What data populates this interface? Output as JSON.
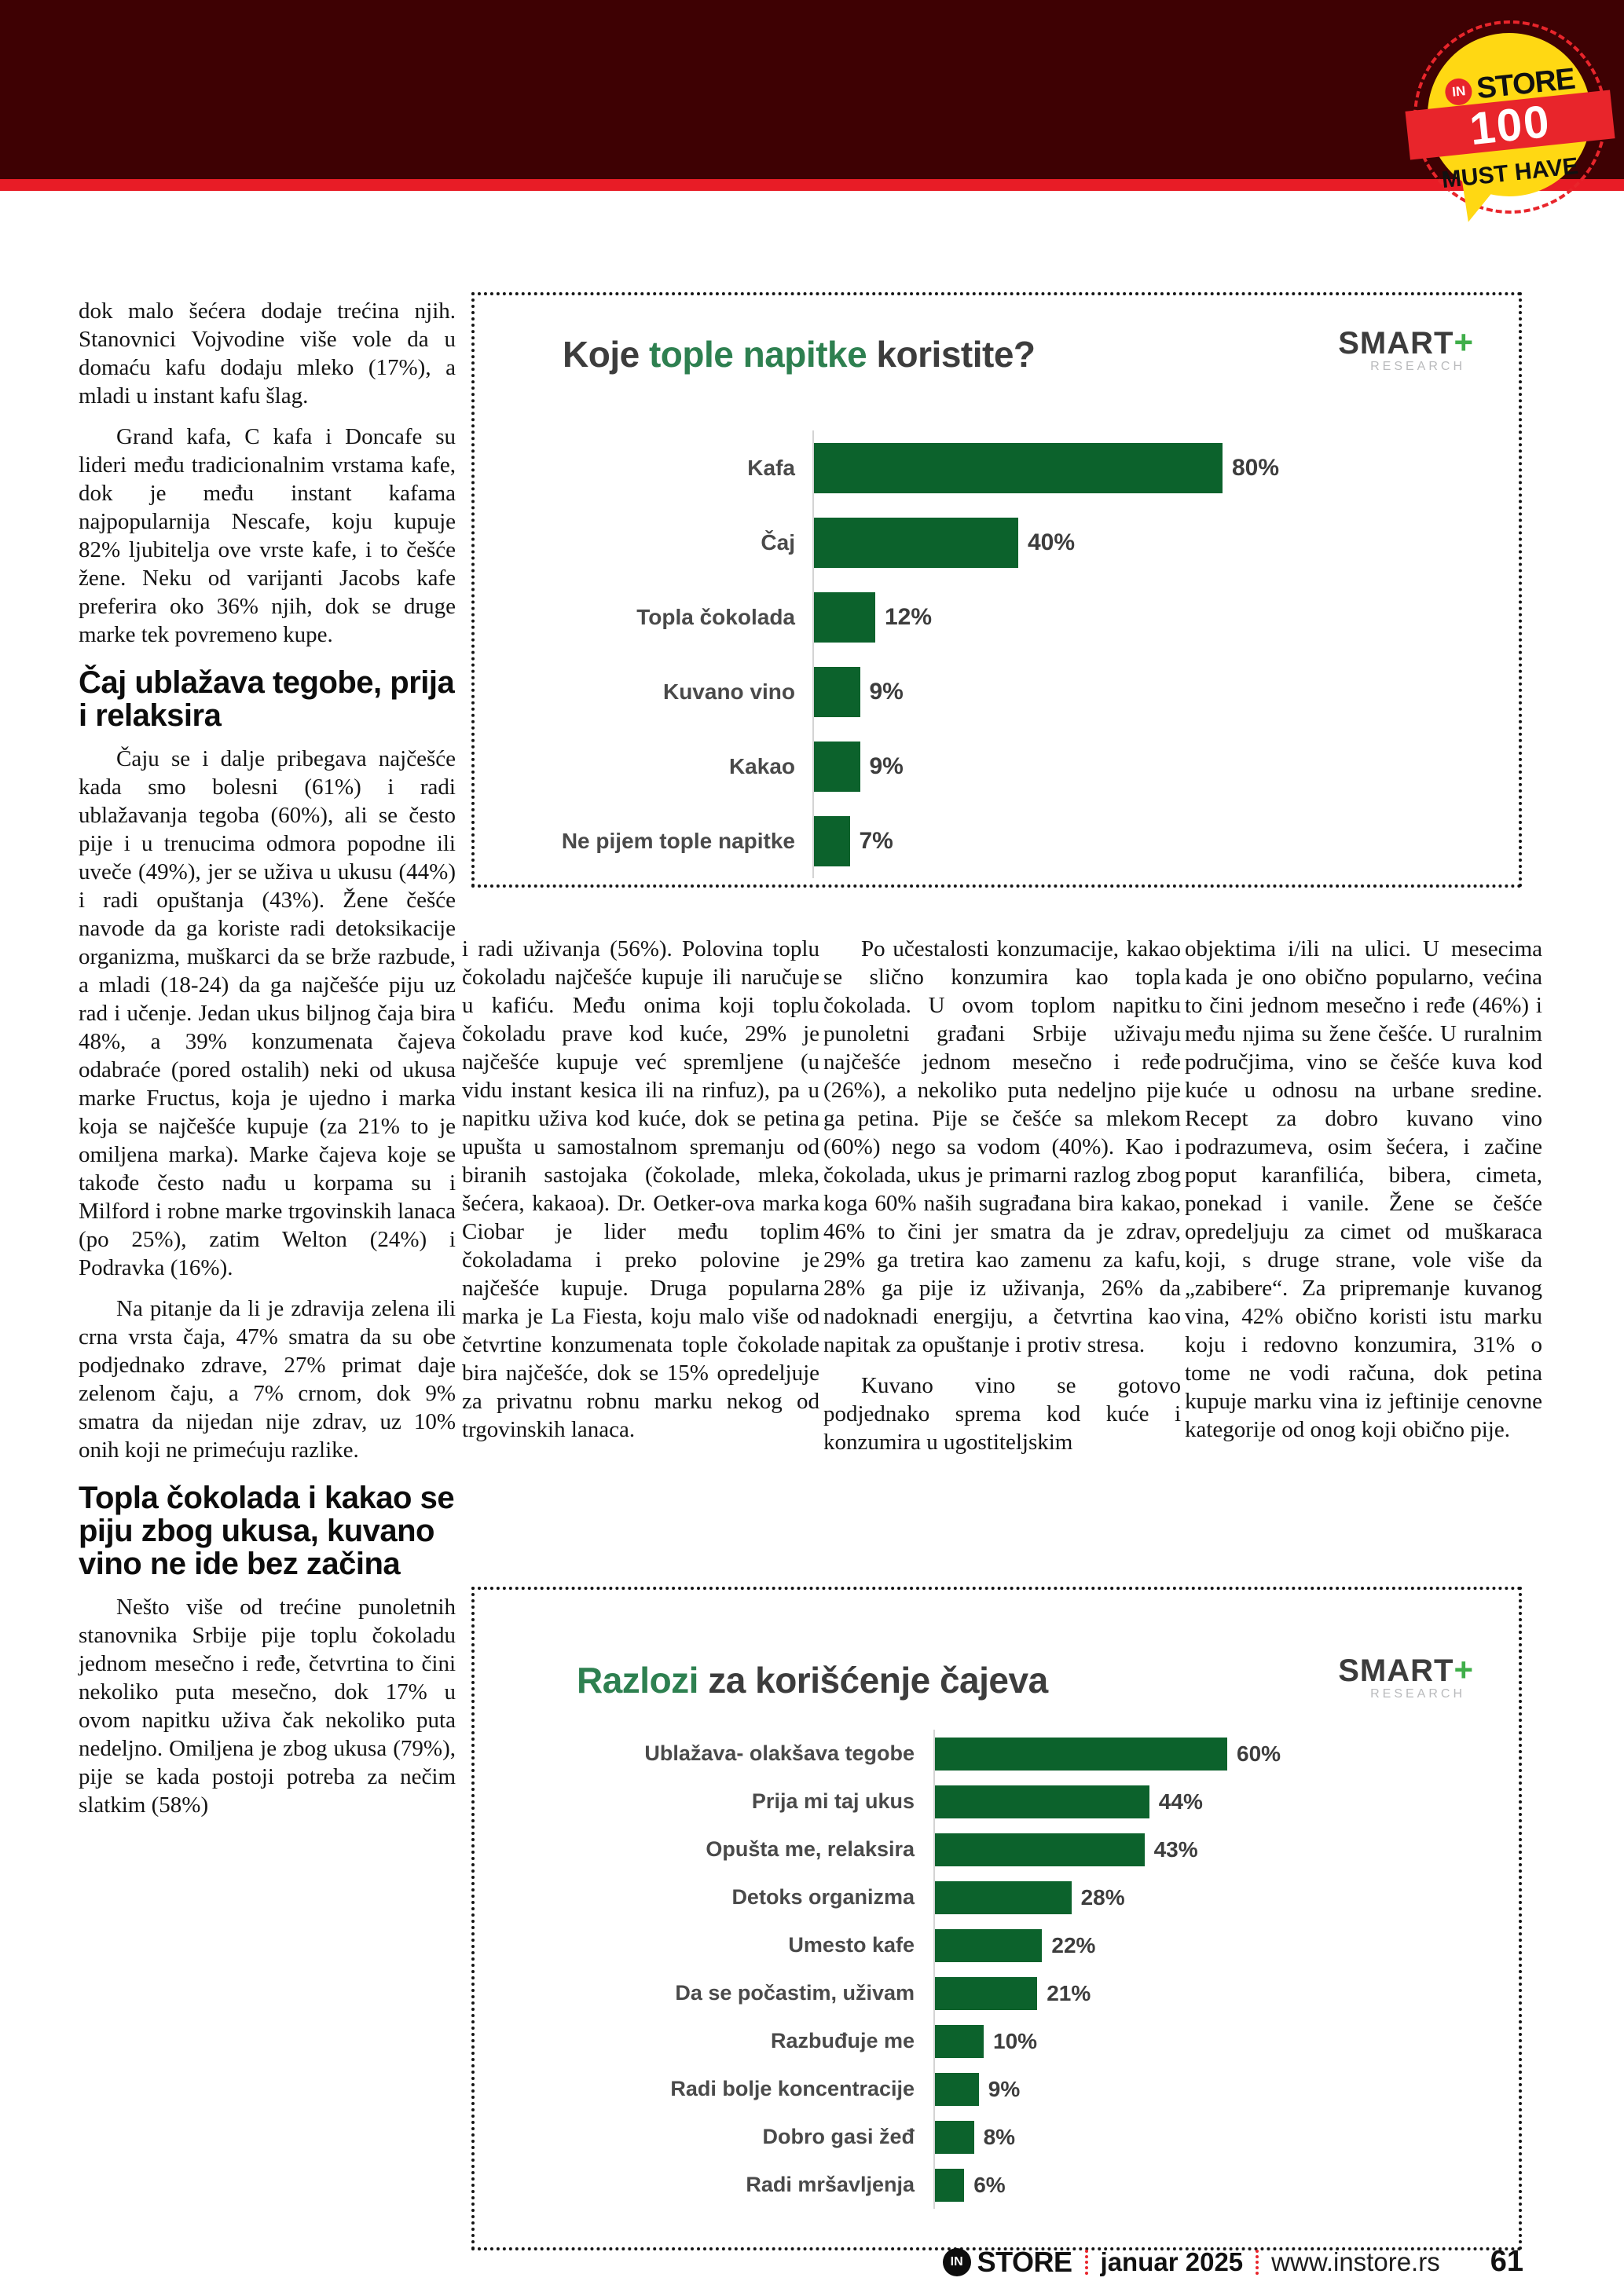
{
  "colors": {
    "header_maroon": "#3e0103",
    "header_red_stripe": "#e81c26",
    "badge_yellow": "#ffd813",
    "badge_red": "#e8252b",
    "bar_green": "#0c622c",
    "title_green": "#2e8050",
    "smart_plus_green": "#3fae49"
  },
  "header": {
    "badge": {
      "in": "IN",
      "store": "STORE",
      "number": "100",
      "must_have": "MUST HAVE"
    }
  },
  "article": {
    "col1": [
      {
        "type": "p",
        "indent": false,
        "text": "dok malo šećera dodaje trećina njih. Stanovnici Vojvodine više vole da u domaću kafu dodaju mleko (17%), a mladi u instant kafu šlag."
      },
      {
        "type": "p",
        "indent": true,
        "text": "Grand kafa, C kafa i Doncafe su lideri među tradicionalnim vrstama kafe, dok je među instant kafama najpopularnija Nescafe, koju kupuje 82% ljubitelja ove vrste kafe, i to češće žene. Neku od varijanti Jacobs kafe preferira oko 36% njih, dok se druge marke tek povremeno kupe."
      },
      {
        "type": "h",
        "text": "Čaj ublažava tegobe, prija i relaksira"
      },
      {
        "type": "p",
        "indent": true,
        "text": "Čaju se i dalje pribegava najčešće kada smo bolesni (61%) i radi ublažavanja tegoba (60%), ali se često pije i u trenucima odmora popodne ili uveče (49%), jer se uživa u ukusu (44%) i radi opuštanja (43%). Žene češće navode da ga koriste radi detoksikacije organizma, muškarci da se brže razbude, a mladi (18-24) da ga najčešće piju uz rad i učenje. Jedan ukus biljnog čaja bira 48%, a 39% konzumenata čajeva odabraće (pored ostalih) neki od ukusa marke Fructus, koja je ujedno i marka koja se najčešće kupuje (za 21% to je omiljena marka). Marke čajeva koje se takođe često nađu u korpama su i Milford i robne marke trgovinskih lanaca (po 25%), zatim Welton (24%) i Podravka (16%)."
      },
      {
        "type": "p",
        "indent": true,
        "text": "Na pitanje da li je zdravija zelena ili crna vrsta čaja, 47% smatra da su obe podjednako zdrave, 27% primat daje zelenom čaju, a 7% crnom, dok 9% smatra da nijedan nije zdrav, uz 10% onih koji ne primećuju razlike."
      },
      {
        "type": "h",
        "text": "Topla čokolada i kakao se piju zbog ukusa, kuvano vino ne ide bez začina"
      },
      {
        "type": "p",
        "indent": true,
        "text": "Nešto više od trećine punoletnih stanovnika Srbije pije toplu čokoladu jednom mesečno i ređe, četvrtina to čini nekoliko puta mesečno, dok 17% u ovom napitku uživa čak nekoliko puta nedeljno. Omiljena je zbog ukusa (79%), pije se kada postoji potreba za nečim slatkim (58%)"
      }
    ],
    "col2": [
      {
        "type": "p",
        "indent": false,
        "text": "i radi uživanja (56%). Polovina toplu čokoladu najčešće kupuje ili naručuje u kafiću. Među onima koji toplu čokoladu prave kod kuće, 29% je najčešće kupuje već spremljene (u vidu instant kesica ili na rinfuz), pa u napitku uživa kod kuće, dok se petina upušta u samostalnom spremanju od biranih sastojaka (čokolade, mleka, šećera, kakaoa). Dr. Oetker-ova marka Ciobar je lider među toplim čokoladama i preko polovine je najčešće kupuje. Druga popularna marka je La Fiesta, koju malo više od četvrtine konzumenata tople čokolade bira najčešće, dok se 15% opredeljuje za privatnu robnu marku nekog od trgovinskih lanaca."
      }
    ],
    "col3": [
      {
        "type": "p",
        "indent": true,
        "text": "Po učestalosti konzumacije, kakao se slično konzumira kao topla čokolada. U ovom toplom napitku punoletni građani Srbije uživaju najčešće jednom mesečno i ređe (26%), a nekoliko puta nedeljno pije ga petina. Pije se češće sa mlekom (60%) nego sa vodom (40%). Kao i čokolada, ukus je primarni razlog zbog koga 60% naših sugrađana bira kakao, 46% to čini jer smatra da je zdrav, 29% ga tretira kao zamenu za kafu, 28% ga pije iz uživanja, 26% da nadoknadi energiju, a četvrtina kao napitak za opuštanje i protiv stresa."
      },
      {
        "type": "p",
        "indent": true,
        "text": "Kuvano vino se gotovo podjednako sprema kod kuće i konzumira u ugostiteljskim"
      }
    ],
    "col4": [
      {
        "type": "p",
        "indent": false,
        "text": "objektima i/ili na ulici. U mesecima kada je ono obično popularno, većina to čini jednom mesečno i ređe (46%) i među njima su žene češće. U ruralnim područjima, vino se češće kuva kod kuće u odnosu na urbane sredine. Recept za dobro kuvano vino podrazumeva, osim šećera, i začine poput karanfilića, bibera, cimeta, ponekad i vanile. Žene se češće opredeljuju za cimet od muškaraca koji, s druge strane, vole više da „zabibere“. Za pripremanje kuvanog vina, 42% obično koristi istu marku koju i redovno konzumira, 31% o tome ne vodi računa, dok petina kupuje marku vina iz jeftinije cenovne kategorije od onog koji obično pije."
      }
    ]
  },
  "chart_data": [
    {
      "type": "bar",
      "orientation": "horizontal",
      "title": "Koje tople napitke koristite?",
      "title_parts": [
        {
          "text": "Koje ",
          "accent": false
        },
        {
          "text": "tople napitke",
          "accent": true
        },
        {
          "text": " koristite?",
          "accent": false
        }
      ],
      "brand": {
        "name": "SMART",
        "plus": "+",
        "sub": "RESEARCH"
      },
      "categories": [
        "Kafa",
        "Čaj",
        "Topla čokolada",
        "Kuvano vino",
        "Kakao",
        "Ne pijem tople napitke"
      ],
      "values": [
        80,
        40,
        12,
        9,
        9,
        7
      ],
      "value_suffix": "%",
      "bar_color": "#0c622c",
      "xlim": [
        0,
        100
      ],
      "grid": false,
      "legend": false,
      "value_labels": true
    },
    {
      "type": "bar",
      "orientation": "horizontal",
      "title": "Razlozi za korišćenje čajeva",
      "title_parts": [
        {
          "text": "Razlozi",
          "accent": true
        },
        {
          "text": " za korišćenje čajeva",
          "accent": false
        }
      ],
      "brand": {
        "name": "SMART",
        "plus": "+",
        "sub": "RESEARCH"
      },
      "categories": [
        "Ublažava- olakšava tegobe",
        "Prija mi taj ukus",
        "Opušta me, relaksira",
        "Detoks organizma",
        "Umesto kafe",
        "Da se počastim, uživam",
        "Razbuđuje me",
        "Radi bolje koncentracije",
        "Dobro gasi žeđ",
        "Radi mršavljenja"
      ],
      "values": [
        60,
        44,
        43,
        28,
        22,
        21,
        10,
        9,
        8,
        6
      ],
      "value_suffix": "%",
      "bar_color": "#0c622c",
      "xlim": [
        0,
        100
      ],
      "grid": false,
      "legend": false,
      "value_labels": true
    }
  ],
  "footer": {
    "logo_in": "IN",
    "logo_store": "STORE",
    "date": "januar 2025",
    "site": "www.instore.rs",
    "page_number": "61"
  }
}
